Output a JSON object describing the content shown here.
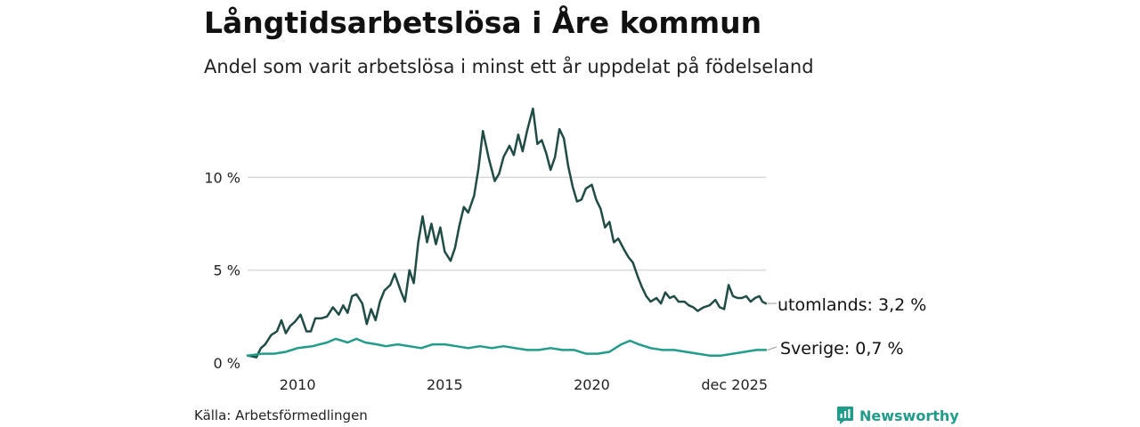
{
  "header": {
    "title": "Långtidsarbetslösa i Åre kommun",
    "subtitle": "Andel som varit arbetslösa i minst ett år uppdelat på födelseland"
  },
  "footer": {
    "source": "Källa: Arbetsförmedlingen",
    "brand": "Newsworthy",
    "brand_icon": "bar-chart-badge-icon"
  },
  "colors": {
    "utomlands": "#1f4d45",
    "sverige": "#1f9d8b",
    "grid": "#d9d9d9",
    "brand": "#1f9d8b"
  },
  "chart_data": {
    "type": "line",
    "title": "Långtidsarbetslösa i Åre kommun",
    "xlabel": "",
    "ylabel": "",
    "xlim": [
      2008.3,
      2025.92
    ],
    "ylim": [
      0,
      15
    ],
    "y_ticks": [
      0,
      5,
      10
    ],
    "y_tick_labels": [
      "0 %",
      "5 %",
      "10 %"
    ],
    "x_ticks": [
      2010,
      2015,
      2020,
      2025.92
    ],
    "x_tick_labels": [
      "2010",
      "2015",
      "2020",
      "dec 2025"
    ],
    "grid": true,
    "series": [
      {
        "name": "utomlands",
        "label": "utomlands: 3,2 %",
        "last_value": 3.2,
        "x": [
          2008.3,
          2008.6,
          2008.75,
          2008.9,
          2009.1,
          2009.3,
          2009.45,
          2009.6,
          2009.75,
          2009.9,
          2010.1,
          2010.3,
          2010.45,
          2010.6,
          2010.8,
          2011.0,
          2011.2,
          2011.4,
          2011.55,
          2011.7,
          2011.85,
          2012.0,
          2012.2,
          2012.35,
          2012.5,
          2012.65,
          2012.8,
          2012.95,
          2013.15,
          2013.3,
          2013.5,
          2013.65,
          2013.8,
          2013.95,
          2014.1,
          2014.25,
          2014.4,
          2014.55,
          2014.7,
          2014.85,
          2015.0,
          2015.2,
          2015.35,
          2015.5,
          2015.65,
          2015.8,
          2016.0,
          2016.15,
          2016.3,
          2016.5,
          2016.7,
          2016.85,
          2017.0,
          2017.2,
          2017.35,
          2017.5,
          2017.65,
          2017.8,
          2018.0,
          2018.15,
          2018.3,
          2018.45,
          2018.6,
          2018.75,
          2018.9,
          2019.05,
          2019.2,
          2019.35,
          2019.5,
          2019.65,
          2019.8,
          2020.0,
          2020.15,
          2020.3,
          2020.45,
          2020.6,
          2020.75,
          2020.9,
          2021.1,
          2021.25,
          2021.4,
          2021.55,
          2021.7,
          2021.85,
          2022.0,
          2022.2,
          2022.35,
          2022.5,
          2022.65,
          2022.8,
          2022.95,
          2023.15,
          2023.3,
          2023.45,
          2023.6,
          2023.8,
          2024.0,
          2024.2,
          2024.35,
          2024.5,
          2024.65,
          2024.8,
          2024.95,
          2025.1,
          2025.25,
          2025.4,
          2025.55,
          2025.7,
          2025.8,
          2025.92
        ],
        "values": [
          0.4,
          0.3,
          0.8,
          1.0,
          1.5,
          1.7,
          2.3,
          1.6,
          2.0,
          2.2,
          2.6,
          1.7,
          1.7,
          2.4,
          2.4,
          2.5,
          3.0,
          2.6,
          3.1,
          2.7,
          3.6,
          3.7,
          3.2,
          2.1,
          2.9,
          2.3,
          3.3,
          3.9,
          4.2,
          4.8,
          3.9,
          3.3,
          5.0,
          4.3,
          6.5,
          7.9,
          6.5,
          7.5,
          6.4,
          7.3,
          6.0,
          5.5,
          6.2,
          7.4,
          8.4,
          8.1,
          9.0,
          10.5,
          12.5,
          11.0,
          9.8,
          10.2,
          11.1,
          11.7,
          11.2,
          12.3,
          11.4,
          12.5,
          13.7,
          11.8,
          12.0,
          11.3,
          10.4,
          11.1,
          12.6,
          12.1,
          10.6,
          9.5,
          8.7,
          8.8,
          9.4,
          9.6,
          8.8,
          8.3,
          7.3,
          7.6,
          6.5,
          6.7,
          6.1,
          5.7,
          5.4,
          4.7,
          4.1,
          3.6,
          3.3,
          3.5,
          3.2,
          3.8,
          3.5,
          3.6,
          3.3,
          3.3,
          3.1,
          3.0,
          2.8,
          3.0,
          3.1,
          3.4,
          3.0,
          2.9,
          4.2,
          3.6,
          3.5,
          3.5,
          3.6,
          3.3,
          3.5,
          3.6,
          3.3,
          3.2
        ]
      },
      {
        "name": "Sverige",
        "label": "Sverige: 0,7 %",
        "last_value": 0.7,
        "x": [
          2008.3,
          2008.8,
          2009.2,
          2009.6,
          2010.0,
          2010.5,
          2011.0,
          2011.3,
          2011.7,
          2012.0,
          2012.3,
          2012.7,
          2013.0,
          2013.4,
          2013.8,
          2014.2,
          2014.6,
          2015.0,
          2015.4,
          2015.8,
          2016.2,
          2016.6,
          2017.0,
          2017.4,
          2017.8,
          2018.2,
          2018.6,
          2019.0,
          2019.4,
          2019.8,
          2020.2,
          2020.6,
          2021.0,
          2021.3,
          2021.6,
          2022.0,
          2022.4,
          2022.8,
          2023.2,
          2023.6,
          2024.0,
          2024.4,
          2024.8,
          2025.2,
          2025.6,
          2025.92
        ],
        "values": [
          0.4,
          0.5,
          0.5,
          0.6,
          0.8,
          0.9,
          1.1,
          1.3,
          1.1,
          1.3,
          1.1,
          1.0,
          0.9,
          1.0,
          0.9,
          0.8,
          1.0,
          1.0,
          0.9,
          0.8,
          0.9,
          0.8,
          0.9,
          0.8,
          0.7,
          0.7,
          0.8,
          0.7,
          0.7,
          0.5,
          0.5,
          0.6,
          1.0,
          1.2,
          1.0,
          0.8,
          0.7,
          0.7,
          0.6,
          0.5,
          0.4,
          0.4,
          0.5,
          0.6,
          0.7,
          0.7
        ]
      }
    ]
  }
}
